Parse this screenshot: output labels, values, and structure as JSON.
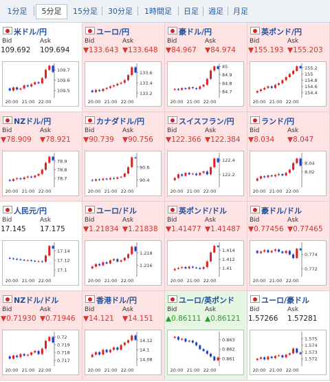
{
  "tabs": {
    "items": [
      "1分足",
      "5分足",
      "15分足",
      "30分足",
      "1時間足",
      "日足",
      "週足",
      "月足"
    ],
    "selected": 1
  },
  "labels": {
    "bid": "Bid",
    "ask": "Ask",
    "times": [
      "20:00",
      "21:00",
      "22:00"
    ]
  },
  "panels": [
    {
      "name": "米ドル/円",
      "trend": "none",
      "bid": "109.692",
      "ask": "109.694",
      "ylim": [
        109.45,
        109.75
      ],
      "yticks": [
        109.7,
        109.6,
        109.5
      ],
      "values": [
        109.52,
        109.5,
        109.53,
        109.51,
        109.52,
        109.55,
        109.54,
        109.56,
        109.58,
        109.57,
        109.62,
        109.7,
        109.74,
        109.68
      ]
    },
    {
      "name": "ユーロ/円",
      "trend": "down",
      "bid": "▼133.643",
      "ask": "▼133.648",
      "ylim": [
        133.15,
        133.75
      ],
      "yticks": [
        133.6,
        133.4,
        133.2
      ],
      "values": [
        133.25,
        133.22,
        133.26,
        133.24,
        133.28,
        133.3,
        133.33,
        133.35,
        133.38,
        133.4,
        133.45,
        133.55,
        133.7,
        133.6
      ]
    },
    {
      "name": "豪ドル/円",
      "trend": "down",
      "bid": "▼84.967",
      "ask": "▼84.974",
      "ylim": [
        84.65,
        85.02
      ],
      "yticks": [
        85,
        84.9,
        84.8,
        84.7
      ],
      "values": [
        84.72,
        84.73,
        84.72,
        84.74,
        84.73,
        84.75,
        84.74,
        84.73,
        84.76,
        84.78,
        84.85,
        84.95,
        85.0,
        84.97
      ]
    },
    {
      "name": "英ポンド/円",
      "trend": "down",
      "bid": "▼155.193",
      "ask": "▼155.203",
      "ylim": [
        154.3,
        155.3
      ],
      "yticks": [
        155.2,
        155,
        154.8,
        154.6,
        154.4
      ],
      "values": [
        154.4,
        154.45,
        154.5,
        154.55,
        154.6,
        154.55,
        154.65,
        154.7,
        154.8,
        154.9,
        155.0,
        155.1,
        155.25,
        155.19
      ]
    },
    {
      "name": "NZドル/円",
      "trend": "down",
      "bid": "▼78.909",
      "ask": "▼78.921",
      "ylim": [
        78.62,
        78.98
      ],
      "yticks": [
        78.9,
        78.8,
        78.7
      ],
      "values": [
        78.68,
        78.67,
        78.69,
        78.7,
        78.69,
        78.71,
        78.72,
        78.71,
        78.73,
        78.75,
        78.8,
        78.88,
        78.95,
        78.91
      ]
    },
    {
      "name": "カナダドル/円",
      "trend": "down",
      "bid": "▼90.739",
      "ask": "▼90.756",
      "ylim": [
        90.32,
        90.8
      ],
      "yticks": [
        90.6,
        90.4
      ],
      "values": [
        90.4,
        90.39,
        90.41,
        90.4,
        90.42,
        90.41,
        90.43,
        90.42,
        90.44,
        90.45,
        90.5,
        90.6,
        90.75,
        90.74
      ]
    },
    {
      "name": "スイスフラン/円",
      "trend": "down",
      "bid": "▼122.366",
      "ask": "▼122.384",
      "ylim": [
        122.05,
        122.48
      ],
      "yticks": [
        122.4,
        122.2
      ],
      "values": [
        122.12,
        122.15,
        122.2,
        122.18,
        122.22,
        122.2,
        122.21,
        122.19,
        122.22,
        122.24,
        122.2,
        122.3,
        122.42,
        122.37
      ]
    },
    {
      "name": "ランド/円",
      "trend": "down",
      "bid": "▼8.034",
      "ask": "▼8.047",
      "ylim": [
        7.99,
        8.06
      ],
      "yticks": [
        8.04,
        8.02
      ],
      "values": [
        8.0,
        8.005,
        8.01,
        8.008,
        8.012,
        8.01,
        8.013,
        8.015,
        8.012,
        8.018,
        8.025,
        8.04,
        8.05,
        8.034
      ]
    },
    {
      "name": "人民元/円",
      "trend": "none",
      "bid": "17.145",
      "ask": "17.175",
      "ylim": [
        17.09,
        17.155
      ],
      "yticks": [
        17.14,
        17.12,
        17.1
      ],
      "values": [
        17.125,
        17.124,
        17.123,
        17.122,
        17.121,
        17.12,
        17.12,
        17.119,
        17.118,
        17.118,
        17.117,
        17.13,
        17.15,
        17.145
      ]
    },
    {
      "name": "ユーロ/ドル",
      "trend": "down",
      "bid": "▼1.21834",
      "ask": "▼1.21838",
      "ylim": [
        1.2145,
        1.2195
      ],
      "yticks": [
        1.218,
        1.216
      ],
      "values": [
        1.2155,
        1.2158,
        1.2162,
        1.216,
        1.2165,
        1.2163,
        1.2168,
        1.217,
        1.2166,
        1.2168,
        1.2172,
        1.2178,
        1.219,
        1.2183
      ]
    },
    {
      "name": "英ポンド/ドル",
      "trend": "down",
      "bid": "▼1.41477",
      "ask": "▼1.41487",
      "ylim": [
        1.4085,
        1.4155
      ],
      "yticks": [
        1.414,
        1.412,
        1.41
      ],
      "values": [
        1.4095,
        1.4098,
        1.41,
        1.4102,
        1.4099,
        1.4103,
        1.4101,
        1.41,
        1.4098,
        1.4102,
        1.4115,
        1.4135,
        1.415,
        1.4148
      ]
    },
    {
      "name": "豪ドル/ドル",
      "trend": "down",
      "bid": "▼0.77456",
      "ask": "▼0.77465",
      "ylim": [
        0.7712,
        0.7755
      ],
      "yticks": [
        0.774,
        0.772
      ],
      "values": [
        0.7745,
        0.7742,
        0.7744,
        0.7746,
        0.7743,
        0.7745,
        0.7747,
        0.7744,
        0.7742,
        0.7745,
        0.774,
        0.7735,
        0.7748,
        0.7746
      ]
    },
    {
      "name": "NZドル/ドル",
      "trend": "down",
      "bid": "▼0.71930",
      "ask": "▼0.71946",
      "ylim": [
        0.7165,
        0.7205
      ],
      "yticks": [
        0.72,
        0.719,
        0.718,
        0.717
      ],
      "values": [
        0.7175,
        0.7172,
        0.7176,
        0.7174,
        0.7178,
        0.7176,
        0.7177,
        0.718,
        0.7182,
        0.7178,
        0.7185,
        0.7195,
        0.72,
        0.7193
      ]
    },
    {
      "name": "香港ドル/円",
      "trend": "down",
      "bid": "▼14.121",
      "ask": "▼14.151",
      "ylim": [
        14.07,
        14.135
      ],
      "yticks": [
        14.12,
        14.1,
        14.08
      ],
      "values": [
        14.085,
        14.09,
        14.095,
        14.09,
        14.1,
        14.095,
        14.1,
        14.105,
        14.1,
        14.11,
        14.115,
        14.12,
        14.13,
        14.121
      ]
    },
    {
      "name": "ユーロ/英ポンド",
      "trend": "up",
      "bid": "▲0.86111",
      "ask": "▲0.86121",
      "ylim": [
        0.8604,
        0.8637
      ],
      "yticks": [
        0.863,
        0.862,
        0.861
      ],
      "values": [
        0.8632,
        0.8633,
        0.863,
        0.8631,
        0.8628,
        0.8629,
        0.8627,
        0.8624,
        0.862,
        0.8618,
        0.8615,
        0.8612,
        0.8608,
        0.8611
      ]
    },
    {
      "name": "ユーロ/豪ドル",
      "trend": "none",
      "bid": "1.57266",
      "ask": "1.57281",
      "ylim": [
        1.5712,
        1.5758
      ],
      "yticks": [
        1.575,
        1.574,
        1.573,
        1.572
      ],
      "values": [
        1.5718,
        1.572,
        1.5722,
        1.5719,
        1.5723,
        1.5721,
        1.5724,
        1.5725,
        1.5722,
        1.5726,
        1.5728,
        1.5735,
        1.5729,
        1.5727
      ]
    }
  ]
}
